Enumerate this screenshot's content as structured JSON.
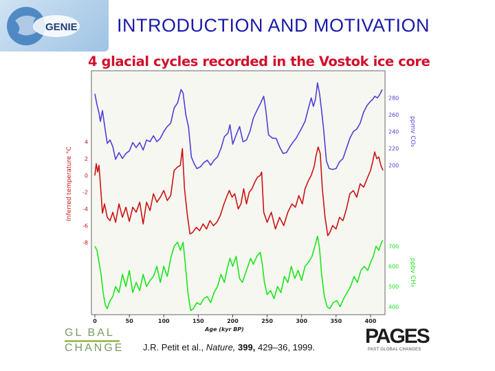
{
  "header": {
    "logo_text": "GENIE",
    "slide_title": "INTRODUCTION AND MOTIVATION"
  },
  "citation": {
    "authors": "J.R. Petit et al.,",
    "journal": "Nature,",
    "volume": "399,",
    "pages_year": "429–36, 1999."
  },
  "logos": {
    "global_change_top": "GL BAL",
    "global_change_bottom": "CHANGE",
    "pages_word": "PAGES",
    "pages_sub": "PAST GLOBAL CHANGES"
  },
  "colors": {
    "title_blue": "#1a1aa8",
    "chart_title_red": "#d0102a",
    "co2_series": "#4b3fd8",
    "temperature_series": "#cc1111",
    "ch4_series": "#19e619"
  },
  "chart_data": {
    "type": "line",
    "title": "4 glacial cycles recorded in the Vostok ice core",
    "xlabel": "Age (kyr BP)",
    "xlim": [
      0,
      420
    ],
    "x_ticks": [
      "0",
      "50",
      "100",
      "150",
      "200",
      "250",
      "300",
      "350",
      "400"
    ],
    "x_tick_values": [
      0,
      50,
      100,
      150,
      200,
      250,
      300,
      350,
      400
    ],
    "series": [
      {
        "key": "co2",
        "axis_label": "ppmv CO₂",
        "axis_side": "right",
        "color": "#4b3fd8",
        "ylim": [
          180,
          300
        ],
        "ticks": [
          200,
          220,
          240,
          260,
          280
        ],
        "points": [
          [
            0,
            285
          ],
          [
            3,
            272
          ],
          [
            6,
            262
          ],
          [
            8,
            252
          ],
          [
            11,
            265
          ],
          [
            14,
            248
          ],
          [
            18,
            226
          ],
          [
            22,
            230
          ],
          [
            26,
            222
          ],
          [
            30,
            207
          ],
          [
            35,
            215
          ],
          [
            40,
            208
          ],
          [
            45,
            214
          ],
          [
            50,
            217
          ],
          [
            55,
            227
          ],
          [
            60,
            221
          ],
          [
            65,
            227
          ],
          [
            70,
            218
          ],
          [
            75,
            230
          ],
          [
            80,
            228
          ],
          [
            85,
            235
          ],
          [
            90,
            228
          ],
          [
            95,
            232
          ],
          [
            100,
            240
          ],
          [
            105,
            246
          ],
          [
            110,
            250
          ],
          [
            115,
            268
          ],
          [
            120,
            274
          ],
          [
            125,
            290
          ],
          [
            128,
            286
          ],
          [
            132,
            260
          ],
          [
            136,
            245
          ],
          [
            140,
            210
          ],
          [
            144,
            202
          ],
          [
            148,
            196
          ],
          [
            153,
            198
          ],
          [
            158,
            203
          ],
          [
            163,
            206
          ],
          [
            168,
            200
          ],
          [
            173,
            206
          ],
          [
            178,
            210
          ],
          [
            183,
            220
          ],
          [
            188,
            234
          ],
          [
            193,
            238
          ],
          [
            196,
            248
          ],
          [
            200,
            225
          ],
          [
            205,
            236
          ],
          [
            210,
            246
          ],
          [
            215,
            228
          ],
          [
            220,
            230
          ],
          [
            225,
            240
          ],
          [
            230,
            256
          ],
          [
            235,
            265
          ],
          [
            240,
            273
          ],
          [
            245,
            282
          ],
          [
            248,
            266
          ],
          [
            252,
            236
          ],
          [
            258,
            232
          ],
          [
            263,
            232
          ],
          [
            268,
            222
          ],
          [
            273,
            214
          ],
          [
            278,
            215
          ],
          [
            283,
            222
          ],
          [
            288,
            228
          ],
          [
            292,
            232
          ],
          [
            296,
            238
          ],
          [
            300,
            244
          ],
          [
            305,
            252
          ],
          [
            310,
            268
          ],
          [
            314,
            280
          ],
          [
            317,
            270
          ],
          [
            320,
            278
          ],
          [
            323,
            298
          ],
          [
            326,
            285
          ],
          [
            329,
            265
          ],
          [
            332,
            242
          ],
          [
            336,
            205
          ],
          [
            340,
            196
          ],
          [
            345,
            195
          ],
          [
            350,
            196
          ],
          [
            355,
            204
          ],
          [
            360,
            208
          ],
          [
            365,
            220
          ],
          [
            370,
            232
          ],
          [
            375,
            240
          ],
          [
            380,
            243
          ],
          [
            385,
            250
          ],
          [
            390,
            263
          ],
          [
            395,
            271
          ],
          [
            400,
            276
          ],
          [
            403,
            278
          ],
          [
            406,
            282
          ],
          [
            410,
            280
          ],
          [
            414,
            285
          ],
          [
            417,
            290
          ]
        ]
      },
      {
        "key": "temperature",
        "axis_label": "Inferred temperature °C",
        "axis_side": "left",
        "color": "#cc1111",
        "ylim": [
          -9,
          7
        ],
        "ticks": [
          -8,
          -6,
          -4,
          -2,
          0,
          2,
          4
        ],
        "points": [
          [
            0,
            0
          ],
          [
            2,
            1.4
          ],
          [
            4,
            0.4
          ],
          [
            6,
            1.2
          ],
          [
            8,
            -1
          ],
          [
            11,
            -4.5
          ],
          [
            14,
            -3.4
          ],
          [
            18,
            -5
          ],
          [
            22,
            -5.4
          ],
          [
            26,
            -4.4
          ],
          [
            30,
            -5.6
          ],
          [
            35,
            -3.4
          ],
          [
            40,
            -5
          ],
          [
            45,
            -3.8
          ],
          [
            50,
            -5.5
          ],
          [
            55,
            -3.8
          ],
          [
            60,
            -4.4
          ],
          [
            65,
            -3.2
          ],
          [
            70,
            -5.8
          ],
          [
            75,
            -3.2
          ],
          [
            80,
            -4.2
          ],
          [
            85,
            -2.2
          ],
          [
            90,
            -3.2
          ],
          [
            95,
            -2.6
          ],
          [
            100,
            -1.8
          ],
          [
            105,
            -3
          ],
          [
            110,
            -2.4
          ],
          [
            115,
            0.6
          ],
          [
            120,
            1
          ],
          [
            124,
            1.2
          ],
          [
            127,
            3.2
          ],
          [
            130,
            -1.5
          ],
          [
            134,
            -4.6
          ],
          [
            138,
            -7
          ],
          [
            142,
            -6.8
          ],
          [
            147,
            -6.2
          ],
          [
            152,
            -6.6
          ],
          [
            157,
            -5.8
          ],
          [
            162,
            -6.4
          ],
          [
            167,
            -5.4
          ],
          [
            172,
            -6
          ],
          [
            177,
            -5.6
          ],
          [
            182,
            -4.8
          ],
          [
            187,
            -3.5
          ],
          [
            191,
            -2.6
          ],
          [
            195,
            -1.8
          ],
          [
            199,
            -2.6
          ],
          [
            203,
            -2.2
          ],
          [
            208,
            -4
          ],
          [
            212,
            -3.4
          ],
          [
            216,
            -1.6
          ],
          [
            220,
            -3.4
          ],
          [
            224,
            -2
          ],
          [
            228,
            -1.6
          ],
          [
            232,
            -0.8
          ],
          [
            236,
            -0.2
          ],
          [
            240,
            0
          ],
          [
            242,
            0.4
          ],
          [
            245,
            -4.4
          ],
          [
            250,
            -5.6
          ],
          [
            256,
            -4.4
          ],
          [
            262,
            -6.4
          ],
          [
            268,
            -5
          ],
          [
            274,
            -6
          ],
          [
            280,
            -4.4
          ],
          [
            286,
            -3.4
          ],
          [
            291,
            -3.8
          ],
          [
            296,
            -2.4
          ],
          [
            301,
            -3.4
          ],
          [
            305,
            -1.6
          ],
          [
            310,
            -0.6
          ],
          [
            314,
            0
          ],
          [
            318,
            1
          ],
          [
            321,
            2.4
          ],
          [
            324,
            3.4
          ],
          [
            327,
            2.6
          ],
          [
            330,
            -1.5
          ],
          [
            334,
            -5
          ],
          [
            338,
            -7.2
          ],
          [
            341,
            -6.8
          ],
          [
            345,
            -6
          ],
          [
            350,
            -6.4
          ],
          [
            355,
            -5
          ],
          [
            360,
            -5.4
          ],
          [
            365,
            -4
          ],
          [
            370,
            -2.2
          ],
          [
            375,
            -1.8
          ],
          [
            380,
            -2.6
          ],
          [
            385,
            -1
          ],
          [
            390,
            -1.4
          ],
          [
            395,
            -0.4
          ],
          [
            400,
            0.6
          ],
          [
            403,
            1.6
          ],
          [
            406,
            2.8
          ],
          [
            409,
            2
          ],
          [
            412,
            2.2
          ],
          [
            415,
            1.2
          ],
          [
            418,
            0.6
          ]
        ]
      },
      {
        "key": "ch4",
        "axis_label": "ppbv CH₄",
        "axis_side": "right",
        "color": "#19e619",
        "ylim": [
          360,
          780
        ],
        "ticks": [
          400,
          500,
          600,
          700
        ],
        "points": [
          [
            0,
            700
          ],
          [
            3,
            680
          ],
          [
            6,
            620
          ],
          [
            9,
            560
          ],
          [
            12,
            470
          ],
          [
            15,
            410
          ],
          [
            18,
            390
          ],
          [
            22,
            430
          ],
          [
            26,
            450
          ],
          [
            30,
            500
          ],
          [
            35,
            470
          ],
          [
            40,
            560
          ],
          [
            45,
            500
          ],
          [
            50,
            580
          ],
          [
            55,
            470
          ],
          [
            60,
            520
          ],
          [
            65,
            480
          ],
          [
            70,
            560
          ],
          [
            75,
            500
          ],
          [
            80,
            530
          ],
          [
            85,
            550
          ],
          [
            90,
            600
          ],
          [
            95,
            520
          ],
          [
            100,
            600
          ],
          [
            105,
            550
          ],
          [
            110,
            640
          ],
          [
            115,
            700
          ],
          [
            120,
            720
          ],
          [
            124,
            680
          ],
          [
            128,
            720
          ],
          [
            131,
            620
          ],
          [
            135,
            470
          ],
          [
            139,
            380
          ],
          [
            143,
            390
          ],
          [
            148,
            420
          ],
          [
            153,
            410
          ],
          [
            158,
            440
          ],
          [
            163,
            450
          ],
          [
            168,
            420
          ],
          [
            173,
            470
          ],
          [
            178,
            500
          ],
          [
            183,
            560
          ],
          [
            188,
            520
          ],
          [
            192,
            590
          ],
          [
            196,
            640
          ],
          [
            200,
            600
          ],
          [
            205,
            650
          ],
          [
            210,
            540
          ],
          [
            214,
            520
          ],
          [
            218,
            560
          ],
          [
            222,
            600
          ],
          [
            226,
            640
          ],
          [
            230,
            610
          ],
          [
            235,
            650
          ],
          [
            240,
            670
          ],
          [
            243,
            610
          ],
          [
            246,
            520
          ],
          [
            250,
            460
          ],
          [
            255,
            480
          ],
          [
            260,
            440
          ],
          [
            265,
            500
          ],
          [
            270,
            470
          ],
          [
            275,
            550
          ],
          [
            280,
            520
          ],
          [
            285,
            600
          ],
          [
            290,
            540
          ],
          [
            295,
            580
          ],
          [
            300,
            530
          ],
          [
            305,
            600
          ],
          [
            310,
            620
          ],
          [
            315,
            650
          ],
          [
            320,
            710
          ],
          [
            323,
            750
          ],
          [
            326,
            690
          ],
          [
            329,
            560
          ],
          [
            333,
            450
          ],
          [
            337,
            400
          ],
          [
            341,
            390
          ],
          [
            346,
            420
          ],
          [
            351,
            430
          ],
          [
            356,
            400
          ],
          [
            361,
            440
          ],
          [
            366,
            470
          ],
          [
            371,
            500
          ],
          [
            376,
            550
          ],
          [
            381,
            520
          ],
          [
            386,
            580
          ],
          [
            391,
            600
          ],
          [
            396,
            580
          ],
          [
            400,
            620
          ],
          [
            404,
            650
          ],
          [
            408,
            700
          ],
          [
            412,
            680
          ],
          [
            416,
            720
          ],
          [
            418,
            730
          ]
        ]
      }
    ]
  }
}
